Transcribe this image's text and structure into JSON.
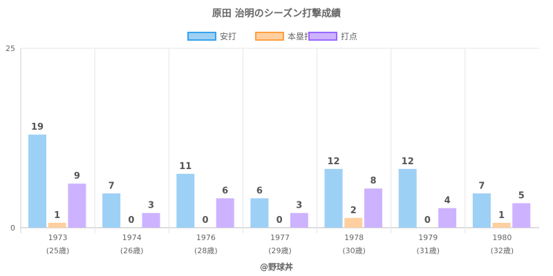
{
  "chart_data": {
    "type": "bar",
    "title": "原田 治明のシーズン打撃成績",
    "categories": [
      "1973",
      "1974",
      "1976",
      "1977",
      "1978",
      "1979",
      "1980"
    ],
    "sublabels": [
      "(25歳)",
      "(26歳)",
      "(28歳)",
      "(29歳)",
      "(30歳)",
      "(31歳)",
      "(32歳)"
    ],
    "series": [
      {
        "name": "安打",
        "values": [
          19,
          7,
          11,
          6,
          12,
          12,
          7
        ],
        "fill": "#9dd0f5",
        "border": "#36a2eb"
      },
      {
        "name": "本塁打",
        "values": [
          1,
          0,
          0,
          0,
          2,
          0,
          1
        ],
        "fill": "#ffcf9f",
        "border": "#ff9f40"
      },
      {
        "name": "打点",
        "values": [
          9,
          3,
          6,
          3,
          8,
          4,
          5
        ],
        "fill": "#cdb3ff",
        "border": "#9966ff"
      }
    ],
    "yticks": [
      "0",
      "25"
    ],
    "legend": "top",
    "grid": true,
    "footer": "@野球丼"
  }
}
